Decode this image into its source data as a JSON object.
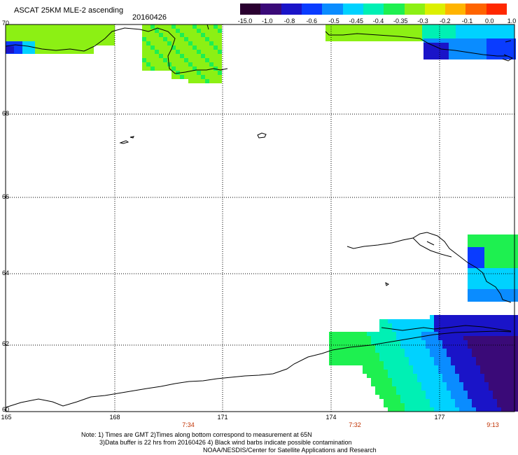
{
  "header": {
    "title": "ASCAT 25KM MLE-2 ascending",
    "date": "20160426"
  },
  "colorbar": {
    "labels": [
      "-15.0",
      "-1.0",
      "-0.8",
      "-0.6",
      "-0.5",
      "-0.45",
      "-0.4",
      "-0.35",
      "-0.3",
      "-0.2",
      "-0.1",
      "0.0",
      "1.0"
    ],
    "colors": [
      "#2a0030",
      "#3a0a78",
      "#1a14c8",
      "#0a3cff",
      "#0a8cff",
      "#00d2ff",
      "#00f0b4",
      "#1ef050",
      "#8cf014",
      "#dcf000",
      "#ffb400",
      "#ff6400",
      "#ff2800"
    ]
  },
  "axes": {
    "lat_labels": [
      "70",
      "68",
      "66",
      "64",
      "62",
      "60"
    ],
    "lon_labels": [
      "165",
      "168",
      "171",
      "174",
      "177"
    ],
    "time_labels": [
      "7:34",
      "7:32",
      "9:13"
    ]
  },
  "notes": {
    "line1": "Note: 1) Times are GMT 2)Times along bottom correspond to measurement at 65N",
    "line2": "3)Data buffer is 22 hrs from 20160426 4) Black wind barbs indicate possible contamination",
    "line3": "NOAA/NESDIS/Center for Satellite Applications and Research"
  }
}
